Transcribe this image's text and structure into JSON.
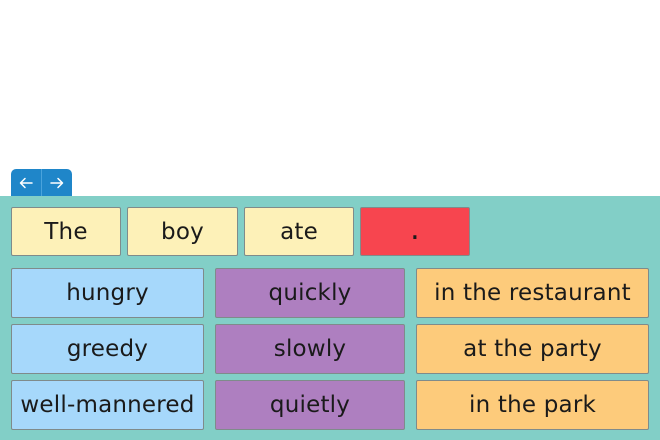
{
  "nav": {
    "back_icon": "arrow-left-icon",
    "forward_icon": "arrow-right-icon",
    "color": "#1f86c9"
  },
  "sentence": {
    "words": [
      "The",
      "boy",
      "ate",
      "."
    ]
  },
  "word_bank": {
    "adjectives": [
      "hungry",
      "greedy",
      "well-mannered"
    ],
    "adverbs": [
      "quickly",
      "slowly",
      "quietly"
    ],
    "places": [
      "in the restaurant",
      "at the party",
      "in the park"
    ]
  },
  "colors": {
    "board": "#82cfc7",
    "sentence_card": "#fdf1b8",
    "punctuation_card": "#f7454f",
    "adjective_card": "#a6d8fb",
    "adverb_card": "#ae7fc0",
    "place_card": "#fdcb7b"
  }
}
